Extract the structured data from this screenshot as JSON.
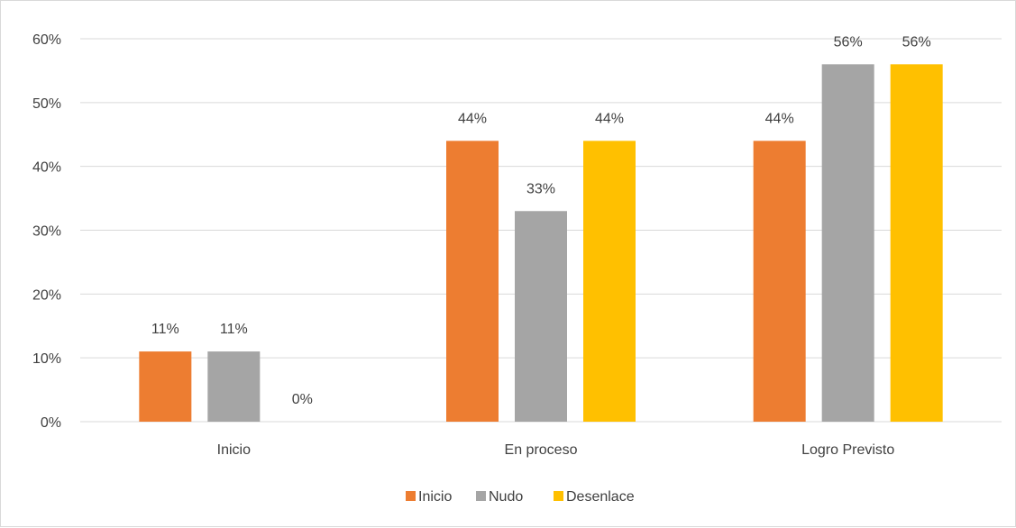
{
  "chart_data": {
    "type": "bar",
    "title": "",
    "xlabel": "",
    "ylabel": "",
    "categories": [
      "Inicio",
      "En proceso",
      "Logro Previsto"
    ],
    "series": [
      {
        "name": "Inicio",
        "color": "#ed7d31",
        "values": [
          11,
          44,
          44
        ],
        "labels": [
          "11%",
          "44%",
          "44%"
        ]
      },
      {
        "name": "Nudo",
        "color": "#a5a5a5",
        "values": [
          11,
          33,
          56
        ],
        "labels": [
          "11%",
          "33%",
          "56%"
        ]
      },
      {
        "name": "Desenlace",
        "color": "#ffc000",
        "values": [
          0,
          44,
          56
        ],
        "labels": [
          "0%",
          "44%",
          "56%"
        ]
      }
    ],
    "ylim": [
      0,
      60
    ],
    "yticks": [
      0,
      10,
      20,
      30,
      40,
      50,
      60
    ],
    "ytick_labels": [
      "0%",
      "10%",
      "20%",
      "30%",
      "40%",
      "50%",
      "60%"
    ],
    "grid": true,
    "legend_position": "bottom",
    "gridline_color": "#d9d9d9"
  }
}
